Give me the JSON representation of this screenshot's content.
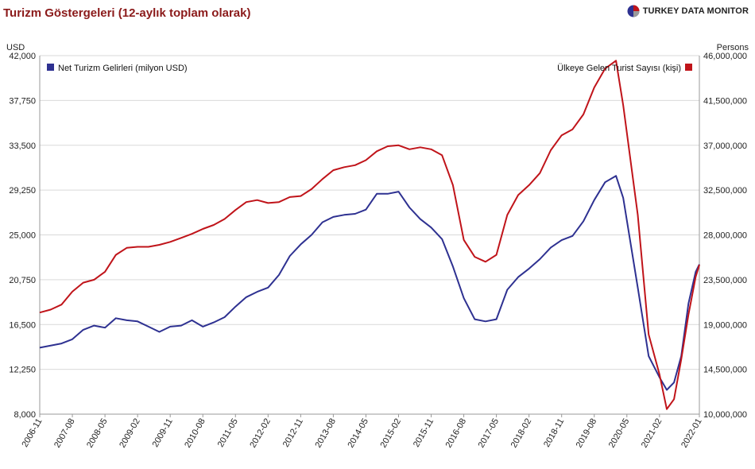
{
  "header": {
    "title": "Turizm Göstergeleri (12-aylık toplam olarak)",
    "brand": "TURKEY DATA MONITOR"
  },
  "colors": {
    "revenue": "#2e3191",
    "arrivals": "#c0141a",
    "title": "#8b1a1a",
    "grid": "#d9d9d9",
    "axis": "#999999"
  },
  "chart_data": {
    "type": "line",
    "y_left": {
      "label": "USD",
      "min": 8000,
      "max": 42000,
      "step": 4250,
      "tick_labels": [
        "8,000",
        "12,250",
        "16,500",
        "20,750",
        "25,000",
        "29,250",
        "33,500",
        "37,750",
        "42,000"
      ]
    },
    "y_right": {
      "label": "Persons",
      "min": 10000000,
      "max": 46000000,
      "step": 4500000,
      "tick_labels": [
        "10,000,000",
        "14,500,000",
        "19,000,000",
        "23,500,000",
        "28,000,000",
        "32,500,000",
        "37,000,000",
        "41,500,000",
        "46,000,000"
      ]
    },
    "x_tick_labels": [
      "2006-11",
      "2007-08",
      "2008-05",
      "2009-02",
      "2009-11",
      "2010-08",
      "2011-05",
      "2012-02",
      "2012-11",
      "2013-08",
      "2014-05",
      "2015-02",
      "2015-11",
      "2016-08",
      "2017-05",
      "2018-02",
      "2018-11",
      "2019-08",
      "2020-05",
      "2021-02",
      "2022-01"
    ],
    "x_range": [
      "2006-11",
      "2022-01"
    ],
    "grid": "horizontal",
    "legend": {
      "left": "top-left",
      "right": "top-right"
    },
    "series": [
      {
        "name": "Net Turizm Gelirleri (milyon USD)",
        "axis": "left",
        "points": [
          [
            "2006-11",
            14300
          ],
          [
            "2007-05",
            14700
          ],
          [
            "2007-08",
            15100
          ],
          [
            "2007-11",
            16000
          ],
          [
            "2008-02",
            16400
          ],
          [
            "2008-05",
            16200
          ],
          [
            "2008-08",
            17100
          ],
          [
            "2008-11",
            16900
          ],
          [
            "2009-02",
            16800
          ],
          [
            "2009-05",
            16300
          ],
          [
            "2009-08",
            15800
          ],
          [
            "2009-11",
            16300
          ],
          [
            "2010-02",
            16400
          ],
          [
            "2010-05",
            16900
          ],
          [
            "2010-08",
            16300
          ],
          [
            "2010-11",
            16700
          ],
          [
            "2011-02",
            17200
          ],
          [
            "2011-05",
            18200
          ],
          [
            "2011-08",
            19100
          ],
          [
            "2011-11",
            19600
          ],
          [
            "2012-02",
            20000
          ],
          [
            "2012-05",
            21200
          ],
          [
            "2012-08",
            23000
          ],
          [
            "2012-11",
            24100
          ],
          [
            "2013-02",
            25000
          ],
          [
            "2013-05",
            26200
          ],
          [
            "2013-08",
            26700
          ],
          [
            "2013-11",
            26900
          ],
          [
            "2014-02",
            27000
          ],
          [
            "2014-05",
            27400
          ],
          [
            "2014-08",
            28900
          ],
          [
            "2014-11",
            28900
          ],
          [
            "2015-02",
            29100
          ],
          [
            "2015-05",
            27600
          ],
          [
            "2015-08",
            26500
          ],
          [
            "2015-11",
            25700
          ],
          [
            "2016-02",
            24600
          ],
          [
            "2016-05",
            22000
          ],
          [
            "2016-08",
            19000
          ],
          [
            "2016-11",
            17000
          ],
          [
            "2017-02",
            16800
          ],
          [
            "2017-05",
            17000
          ],
          [
            "2017-08",
            19800
          ],
          [
            "2017-11",
            21000
          ],
          [
            "2018-02",
            21800
          ],
          [
            "2018-05",
            22700
          ],
          [
            "2018-08",
            23800
          ],
          [
            "2018-11",
            24500
          ],
          [
            "2019-02",
            24900
          ],
          [
            "2019-05",
            26300
          ],
          [
            "2019-08",
            28300
          ],
          [
            "2019-11",
            30000
          ],
          [
            "2020-02",
            30600
          ],
          [
            "2020-04",
            28500
          ],
          [
            "2020-08",
            20000
          ],
          [
            "2020-11",
            13500
          ],
          [
            "2021-02",
            11500
          ],
          [
            "2021-04",
            10300
          ],
          [
            "2021-06",
            11000
          ],
          [
            "2021-08",
            13500
          ],
          [
            "2021-10",
            18500
          ],
          [
            "2021-12",
            21500
          ],
          [
            "2022-01",
            22200
          ]
        ]
      },
      {
        "name": "Ülkeye Gelen Turist Sayısı (kişi)",
        "axis": "right",
        "points": [
          [
            "2006-11",
            20200000
          ],
          [
            "2007-02",
            20500000
          ],
          [
            "2007-05",
            21000000
          ],
          [
            "2007-08",
            22300000
          ],
          [
            "2007-11",
            23200000
          ],
          [
            "2008-02",
            23500000
          ],
          [
            "2008-05",
            24300000
          ],
          [
            "2008-08",
            26000000
          ],
          [
            "2008-11",
            26700000
          ],
          [
            "2009-02",
            26800000
          ],
          [
            "2009-05",
            26800000
          ],
          [
            "2009-08",
            27000000
          ],
          [
            "2009-11",
            27300000
          ],
          [
            "2010-02",
            27700000
          ],
          [
            "2010-05",
            28100000
          ],
          [
            "2010-08",
            28600000
          ],
          [
            "2010-11",
            29000000
          ],
          [
            "2011-02",
            29600000
          ],
          [
            "2011-05",
            30500000
          ],
          [
            "2011-08",
            31300000
          ],
          [
            "2011-11",
            31500000
          ],
          [
            "2012-02",
            31200000
          ],
          [
            "2012-05",
            31300000
          ],
          [
            "2012-08",
            31800000
          ],
          [
            "2012-11",
            31900000
          ],
          [
            "2013-02",
            32600000
          ],
          [
            "2013-05",
            33600000
          ],
          [
            "2013-08",
            34500000
          ],
          [
            "2013-11",
            34800000
          ],
          [
            "2014-02",
            35000000
          ],
          [
            "2014-05",
            35500000
          ],
          [
            "2014-08",
            36400000
          ],
          [
            "2014-11",
            36900000
          ],
          [
            "2015-02",
            37000000
          ],
          [
            "2015-05",
            36600000
          ],
          [
            "2015-08",
            36800000
          ],
          [
            "2015-11",
            36600000
          ],
          [
            "2016-02",
            36000000
          ],
          [
            "2016-05",
            33000000
          ],
          [
            "2016-08",
            27500000
          ],
          [
            "2016-11",
            25800000
          ],
          [
            "2017-02",
            25300000
          ],
          [
            "2017-05",
            26000000
          ],
          [
            "2017-08",
            30000000
          ],
          [
            "2017-11",
            32000000
          ],
          [
            "2018-02",
            33000000
          ],
          [
            "2018-05",
            34200000
          ],
          [
            "2018-08",
            36500000
          ],
          [
            "2018-11",
            38000000
          ],
          [
            "2019-02",
            38600000
          ],
          [
            "2019-05",
            40100000
          ],
          [
            "2019-08",
            42800000
          ],
          [
            "2019-11",
            44700000
          ],
          [
            "2020-02",
            45500000
          ],
          [
            "2020-04",
            41000000
          ],
          [
            "2020-08",
            30000000
          ],
          [
            "2020-11",
            18000000
          ],
          [
            "2021-02",
            14000000
          ],
          [
            "2021-04",
            10500000
          ],
          [
            "2021-06",
            11500000
          ],
          [
            "2021-08",
            15500000
          ],
          [
            "2021-10",
            20000000
          ],
          [
            "2021-12",
            23800000
          ],
          [
            "2022-01",
            25000000
          ]
        ]
      }
    ]
  }
}
